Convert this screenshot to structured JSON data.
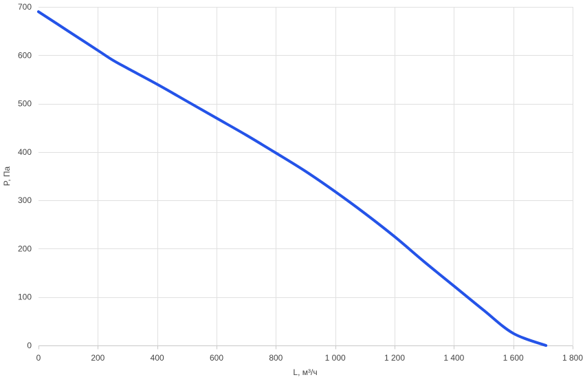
{
  "chart_data": {
    "type": "line",
    "title": "",
    "xlabel": "L, м³/ч",
    "ylabel": "P, Па",
    "xlim": [
      0,
      1800
    ],
    "ylim": [
      0,
      700
    ],
    "x_ticks": [
      0,
      200,
      400,
      600,
      800,
      1000,
      1200,
      1400,
      1600,
      1800
    ],
    "x_tick_labels": [
      "0",
      "200",
      "400",
      "600",
      "800",
      "1 000",
      "1 200",
      "1 400",
      "1 600",
      "1 800"
    ],
    "y_ticks": [
      0,
      100,
      200,
      300,
      400,
      500,
      600,
      700
    ],
    "y_tick_labels": [
      "0",
      "100",
      "200",
      "300",
      "400",
      "500",
      "600",
      "700"
    ],
    "grid": true,
    "legend": "none",
    "series": [
      {
        "color": "#2453e8",
        "x": [
          0,
          100,
          200,
          250,
          300,
          400,
          500,
          600,
          700,
          800,
          900,
          1000,
          1100,
          1200,
          1300,
          1400,
          1500,
          1600,
          1710
        ],
        "y": [
          690,
          650,
          610,
          590,
          573,
          540,
          505,
          470,
          435,
          398,
          360,
          318,
          273,
          225,
          173,
          123,
          73,
          25,
          0
        ]
      }
    ]
  }
}
